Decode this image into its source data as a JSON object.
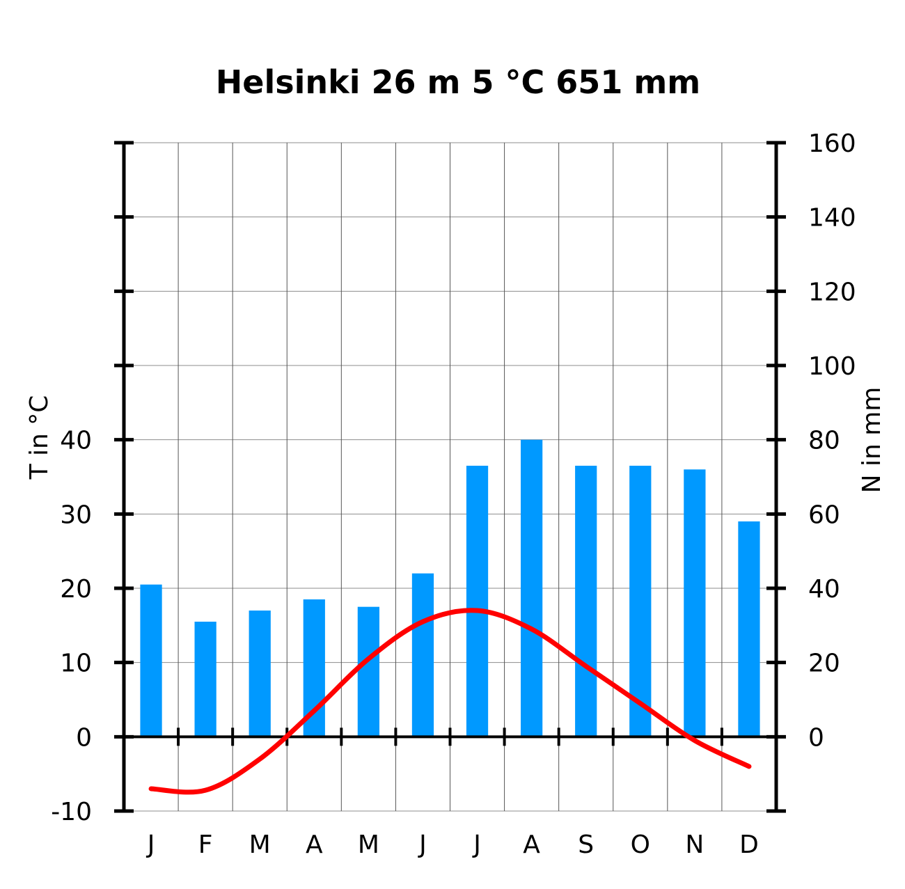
{
  "chart_data": {
    "type": "bar",
    "title": "Helsinki  26 m  5 °C  651 mm",
    "categories": [
      "J",
      "F",
      "M",
      "A",
      "M",
      "J",
      "J",
      "A",
      "S",
      "O",
      "N",
      "D"
    ],
    "y_left": {
      "label": "T in °C",
      "ylim": [
        -10,
        80
      ],
      "ticks": [
        -10,
        0,
        10,
        20,
        30,
        40
      ]
    },
    "y_right": {
      "label": "N in mm",
      "ylim": [
        -20,
        160
      ],
      "ticks": [
        0,
        20,
        40,
        60,
        80,
        100,
        120,
        140,
        160
      ]
    },
    "series": [
      {
        "type": "bar",
        "axis": "right",
        "color": "#0099ff",
        "values": [
          41,
          31,
          34,
          37,
          35,
          44,
          73,
          80,
          73,
          73,
          72,
          58
        ]
      },
      {
        "type": "line",
        "axis": "left",
        "color": "#ff0000",
        "values": [
          -7.0,
          -7.2,
          -3.0,
          3.5,
          10.5,
          15.5,
          17.0,
          14.5,
          9.5,
          4.5,
          -0.5,
          -4.0
        ]
      }
    ],
    "grid": true
  }
}
